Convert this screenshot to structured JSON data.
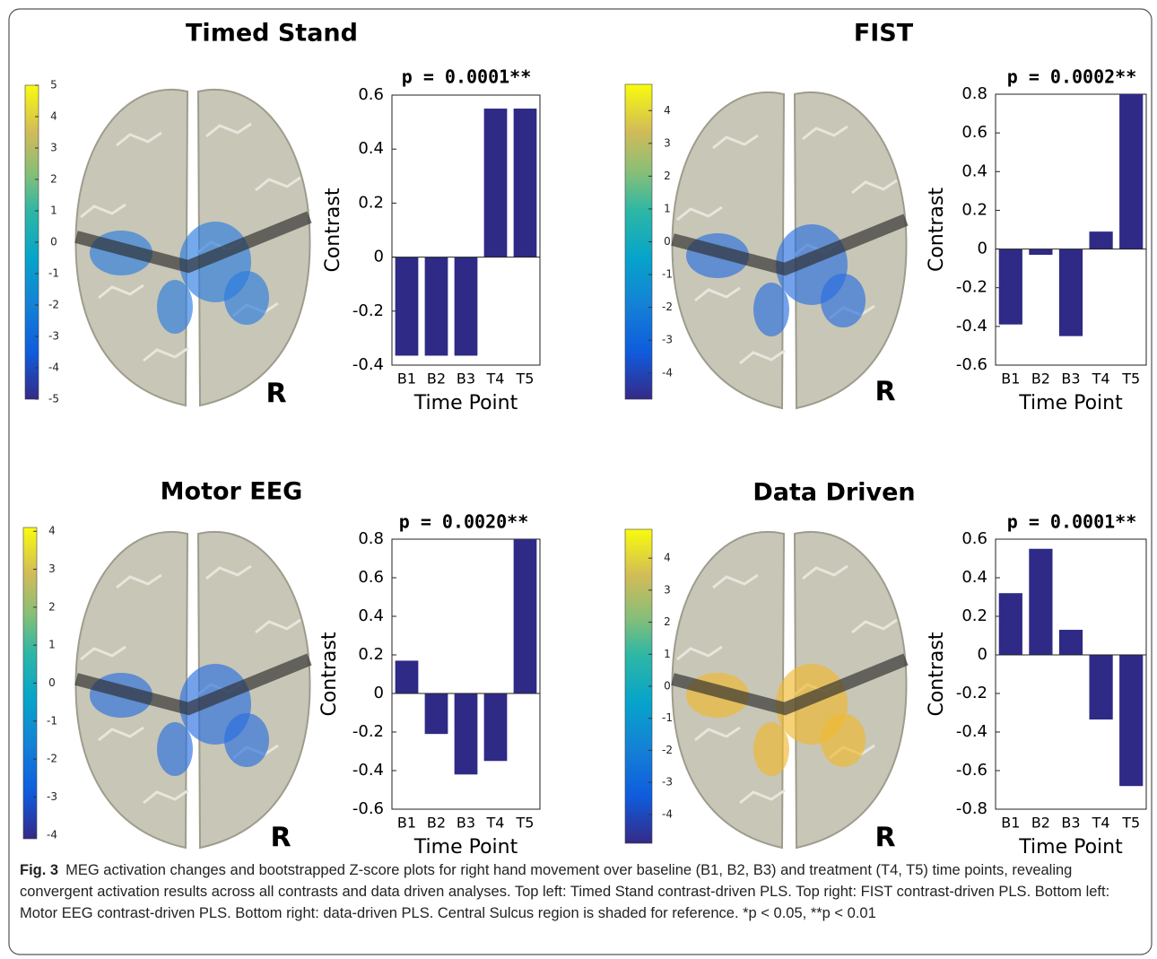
{
  "chart_data": [
    {
      "type": "bar",
      "title": "Timed Stand",
      "subtitle": "p = 0.0001**",
      "xlabel": "Time Point",
      "ylabel": "Contrast",
      "categories": [
        "B1",
        "B2",
        "B3",
        "T4",
        "T5"
      ],
      "values": [
        -0.365,
        -0.365,
        -0.365,
        0.55,
        0.55
      ],
      "color": "#2e2a86",
      "ylim": [
        -0.4,
        0.6
      ],
      "yticks": [
        -0.4,
        -0.2,
        0,
        0.2,
        0.4,
        0.6
      ],
      "colorbar": {
        "clim": [
          -5,
          5
        ],
        "ticks": [
          -5,
          -4,
          -3,
          -2,
          -1,
          0,
          1,
          2,
          3,
          4,
          5
        ]
      },
      "annotation": "R"
    },
    {
      "type": "bar",
      "title": "FIST",
      "subtitle": "p = 0.0002**",
      "xlabel": "Time Point",
      "ylabel": "Contrast",
      "categories": [
        "B1",
        "B2",
        "B3",
        "T4",
        "T5"
      ],
      "values": [
        -0.39,
        -0.03,
        -0.45,
        0.09,
        0.8
      ],
      "color": "#2e2a86",
      "ylim": [
        -0.6,
        0.8
      ],
      "yticks": [
        -0.6,
        -0.4,
        -0.2,
        0,
        0.2,
        0.4,
        0.6,
        0.8
      ],
      "colorbar": {
        "clim": [
          -4.8,
          4.8
        ],
        "ticks": [
          -4,
          -3,
          -2,
          -1,
          0,
          1,
          2,
          3,
          4
        ]
      },
      "annotation": "R"
    },
    {
      "type": "bar",
      "title": "Motor EEG",
      "subtitle": "p = 0.0020**",
      "xlabel": "Time Point",
      "ylabel": "Contrast",
      "categories": [
        "B1",
        "B2",
        "B3",
        "T4",
        "T5"
      ],
      "values": [
        0.17,
        -0.21,
        -0.42,
        -0.35,
        0.8
      ],
      "color": "#2e2a86",
      "ylim": [
        -0.6,
        0.8
      ],
      "yticks": [
        -0.6,
        -0.4,
        -0.2,
        0,
        0.2,
        0.4,
        0.6,
        0.8
      ],
      "colorbar": {
        "clim": [
          -4.1,
          4.1
        ],
        "ticks": [
          -4,
          -3,
          -2,
          -1,
          0,
          1,
          2,
          3,
          4
        ]
      },
      "annotation": "R"
    },
    {
      "type": "bar",
      "title": "Data Driven",
      "subtitle": "p = 0.0001**",
      "xlabel": "Time Point",
      "ylabel": "Contrast",
      "categories": [
        "B1",
        "B2",
        "B3",
        "T4",
        "T5"
      ],
      "values": [
        0.32,
        0.55,
        0.13,
        -0.335,
        -0.68
      ],
      "color": "#2e2a86",
      "ylim": [
        -0.8,
        0.6
      ],
      "yticks": [
        -0.8,
        -0.6,
        -0.4,
        -0.2,
        0,
        0.2,
        0.4,
        0.6
      ],
      "colorbar": {
        "clim": [
          -4.9,
          4.9
        ],
        "ticks": [
          -4,
          -3,
          -2,
          -1,
          0,
          1,
          2,
          3,
          4
        ]
      },
      "annotation": "R"
    }
  ],
  "caption": {
    "label": "Fig. 3",
    "text": "MEG activation changes and bootstrapped Z-score plots for right hand movement over baseline (B1, B2, B3) and treatment (T4, T5) time points, revealing convergent activation results across all contrasts and data driven analyses. Top left: Timed Stand contrast-driven PLS. Top right: FIST contrast-driven PLS. Bottom left: Motor EEG contrast-driven PLS. Bottom right: data-driven PLS. Central Sulcus region is shaded for reference. *p < 0.05, **p < 0.01"
  }
}
